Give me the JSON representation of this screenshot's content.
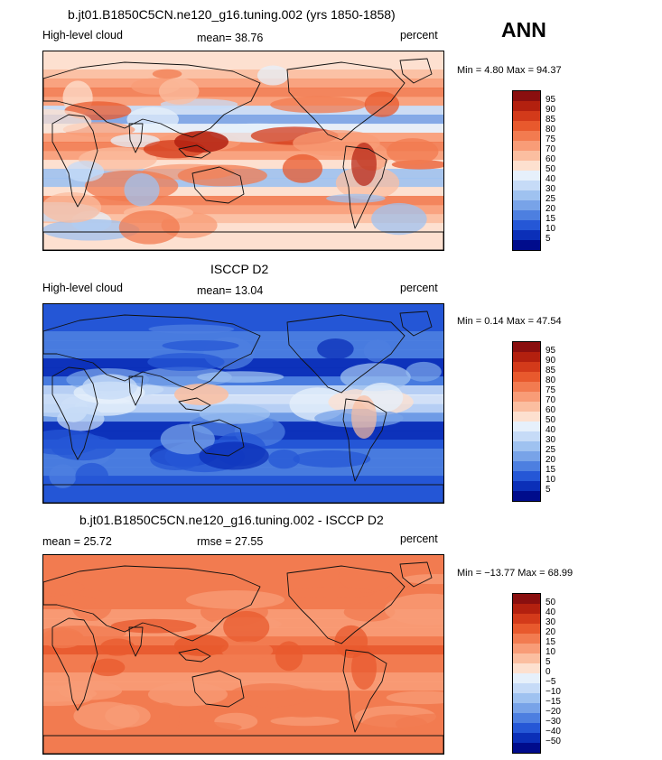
{
  "season": "ANN",
  "panels": [
    {
      "title": "b.jt01.B1850C5CN.ne120_g16.tuning.002 (yrs 1850-1858)",
      "left_label": "High-level cloud",
      "stat1": "mean=  38.76",
      "stat2": "",
      "units": "percent",
      "minmax": "Min =   4.80 Max =  94.37",
      "field_levels": [
        0.55,
        0.48,
        0.72
      ],
      "colorbar": {
        "labels": [
          "95",
          "90",
          "85",
          "80",
          "75",
          "70",
          "60",
          "50",
          "40",
          "30",
          "25",
          "20",
          "15",
          "10",
          "5"
        ],
        "colors": [
          "#8a0f0f",
          "#b3200f",
          "#d33a1a",
          "#e8592d",
          "#f27b50",
          "#f89c77",
          "#fbbea0",
          "#fde0cf",
          "#e6f0fb",
          "#c6dbf7",
          "#9fc2f0",
          "#78a3e8",
          "#4d7fe0",
          "#2557d6",
          "#0b2fb8",
          "#000c8c"
        ]
      },
      "palette": [
        "#000c8c",
        "#0b2fb8",
        "#2557d6",
        "#4d7fe0",
        "#78a3e8",
        "#9fc2f0",
        "#c6dbf7",
        "#e6f0fb",
        "#fde0cf",
        "#fbbea0",
        "#f89c77",
        "#f27b50",
        "#e8592d",
        "#d33a1a",
        "#b3200f",
        "#8a0f0f"
      ]
    },
    {
      "title": "ISCCP D2",
      "left_label": "High-level cloud",
      "stat1": "mean=  13.04",
      "stat2": "",
      "units": "percent",
      "minmax": "Min =   0.14 Max =  47.54",
      "field_levels": [
        0.15,
        0.2,
        0.5
      ],
      "colorbar": {
        "labels": [
          "95",
          "90",
          "85",
          "80",
          "75",
          "70",
          "60",
          "50",
          "40",
          "30",
          "25",
          "20",
          "15",
          "10",
          "5"
        ],
        "colors": [
          "#8a0f0f",
          "#b3200f",
          "#d33a1a",
          "#e8592d",
          "#f27b50",
          "#f89c77",
          "#fbbea0",
          "#fde0cf",
          "#e6f0fb",
          "#c6dbf7",
          "#9fc2f0",
          "#78a3e8",
          "#4d7fe0",
          "#2557d6",
          "#0b2fb8",
          "#000c8c"
        ]
      },
      "palette": [
        "#000c8c",
        "#0b2fb8",
        "#2557d6",
        "#4d7fe0",
        "#78a3e8",
        "#9fc2f0",
        "#c6dbf7",
        "#e6f0fb",
        "#fde0cf",
        "#fbbea0",
        "#f89c77",
        "#f27b50",
        "#e8592d",
        "#d33a1a",
        "#b3200f",
        "#8a0f0f"
      ]
    },
    {
      "title": "b.jt01.B1850C5CN.ne120_g16.tuning.002 - ISCCP D2",
      "left_label": "mean =  25.72",
      "stat1": "rmse =  27.55",
      "stat2": "",
      "units": "percent",
      "minmax": "Min = −13.77 Max =  68.99",
      "field_levels": [
        0.7,
        0.12,
        0.78
      ],
      "colorbar": {
        "labels": [
          "50",
          "40",
          "30",
          "20",
          "15",
          "10",
          "5",
          "0",
          "−5",
          "−10",
          "−15",
          "−20",
          "−30",
          "−40",
          "−50"
        ],
        "colors": [
          "#8a0f0f",
          "#b3200f",
          "#d33a1a",
          "#e8592d",
          "#f27b50",
          "#f89c77",
          "#fbbea0",
          "#fde0cf",
          "#e6f0fb",
          "#c6dbf7",
          "#9fc2f0",
          "#78a3e8",
          "#4d7fe0",
          "#2557d6",
          "#0b2fb8",
          "#000c8c"
        ]
      },
      "palette": [
        "#000c8c",
        "#0b2fb8",
        "#2557d6",
        "#4d7fe0",
        "#78a3e8",
        "#9fc2f0",
        "#c6dbf7",
        "#e6f0fb",
        "#fde0cf",
        "#fbbea0",
        "#f89c77",
        "#f27b50",
        "#e8592d",
        "#d33a1a",
        "#b3200f",
        "#8a0f0f"
      ]
    }
  ]
}
